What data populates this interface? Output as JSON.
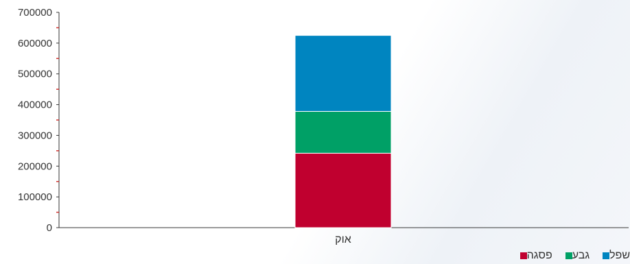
{
  "chart_data": {
    "type": "bar",
    "stacked": true,
    "categories": [
      "אוק"
    ],
    "series": [
      {
        "name": "פסגה",
        "values": [
          242000
        ],
        "color": "#c0002f"
      },
      {
        "name": "גבע",
        "values": [
          136000
        ],
        "color": "#00a066"
      },
      {
        "name": "שפל",
        "values": [
          247000
        ],
        "color": "#0085c0"
      }
    ],
    "ylim": [
      0,
      700000
    ],
    "yticks": [
      "0",
      "100000",
      "200000",
      "300000",
      "400000",
      "500000",
      "600000",
      "700000"
    ],
    "grid": false,
    "legend": "bottom-left"
  }
}
